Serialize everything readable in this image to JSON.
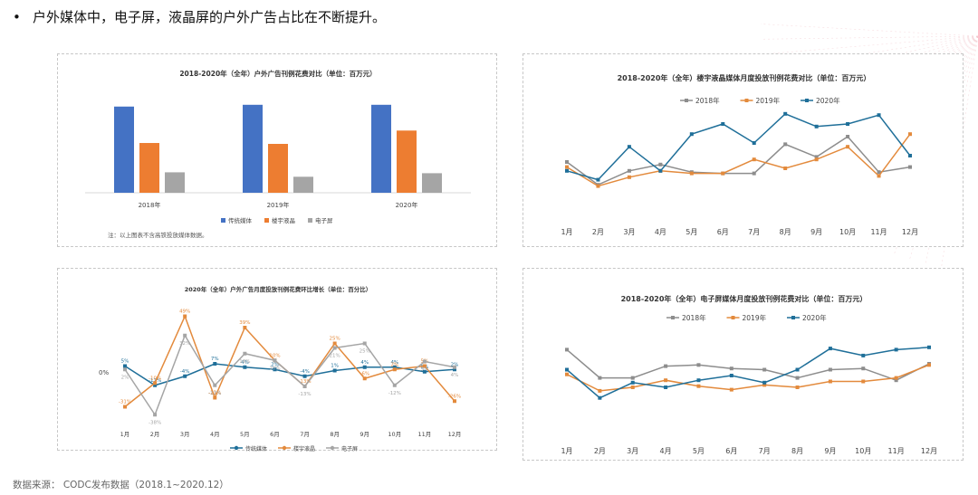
{
  "headline": "户外媒体中，电子屏，液晶屏的户外广告占比在不断提升。",
  "bullet": "•",
  "footer": "数据来源：  CODC发布数据（2018.1~2020.12）",
  "colors": {
    "blue": "#4472c4",
    "orange": "#ed7d31",
    "gray": "#a5a5a5",
    "teal": "#1f6f99",
    "orange2": "#e38a3c",
    "gray2": "#8d8d8d"
  },
  "chart_data": [
    {
      "type": "bar",
      "title": "2018-2020年（全年）户外广告刊例花费对比（单位：百万元）",
      "categories": [
        "2018年",
        "2019年",
        "2020年"
      ],
      "series": [
        {
          "name": "传统媒体",
          "values": [
            97,
            99,
            99
          ]
        },
        {
          "name": "楼宇液晶",
          "values": [
            56,
            55,
            70
          ]
        },
        {
          "name": "电子屏",
          "values": [
            23,
            18,
            22
          ]
        }
      ],
      "ylim": [
        0,
        110
      ],
      "note": "注：以上图表不含高铁投放媒体数据。"
    },
    {
      "type": "line",
      "title": "2018-2020年（全年）楼宇液晶媒体月度投放刊例花费对比（单位：百万元）",
      "categories": [
        "1月",
        "2月",
        "3月",
        "4月",
        "5月",
        "6月",
        "7月",
        "8月",
        "9月",
        "10月",
        "11月",
        "12月"
      ],
      "series": [
        {
          "name": "2018年",
          "values": [
            40,
            22,
            33,
            38,
            32,
            31,
            31,
            54,
            44,
            60,
            32,
            36
          ]
        },
        {
          "name": "2019年",
          "values": [
            36,
            21,
            28,
            33,
            31,
            31,
            42,
            35,
            42,
            52,
            29,
            62
          ]
        },
        {
          "name": "2020年",
          "values": [
            33,
            26,
            52,
            33,
            62,
            70,
            55,
            78,
            68,
            70,
            77,
            45
          ]
        }
      ],
      "ylim": [
        0,
        100
      ]
    },
    {
      "type": "line",
      "title": "2020年（全年）户外广告月度投放刊例花费环比增长（单位：百分比）",
      "categories": [
        "1月",
        "2月",
        "3月",
        "4月",
        "5月",
        "6月",
        "7月",
        "8月",
        "9月",
        "10月",
        "11月",
        "12月"
      ],
      "series": [
        {
          "name": "传统媒体",
          "values": [
            5,
            -12,
            -4,
            7,
            4,
            2,
            -4,
            1,
            4,
            4,
            0,
            2
          ]
        },
        {
          "name": "楼宇液晶",
          "values": [
            -31,
            -10,
            49,
            -23,
            39,
            10,
            -13,
            25,
            -6,
            2,
            5,
            -26
          ]
        },
        {
          "name": "电子屏",
          "values": [
            2,
            -38,
            32,
            -12,
            16,
            10,
            -13,
            21,
            25,
            -12,
            9,
            4
          ]
        }
      ],
      "ylim": [
        -45,
        55
      ],
      "yticks": [
        "0%"
      ]
    },
    {
      "type": "line",
      "title": "2018-2020年（全年）电子屏媒体月度投放刊例花费对比（单位：百万元）",
      "categories": [
        "1月",
        "2月",
        "3月",
        "4月",
        "5月",
        "6月",
        "7月",
        "8月",
        "9月",
        "10月",
        "11月",
        "12月"
      ],
      "series": [
        {
          "name": "2018年",
          "values": [
            62,
            38,
            38,
            48,
            49,
            46,
            45,
            38,
            45,
            46,
            36,
            50
          ]
        },
        {
          "name": "2019年",
          "values": [
            41,
            27,
            30,
            36,
            31,
            28,
            32,
            30,
            35,
            35,
            38,
            49
          ]
        },
        {
          "name": "2020年",
          "values": [
            45,
            21,
            34,
            30,
            36,
            40,
            34,
            45,
            63,
            57,
            62,
            64
          ]
        }
      ],
      "ylim": [
        0,
        100
      ]
    }
  ]
}
